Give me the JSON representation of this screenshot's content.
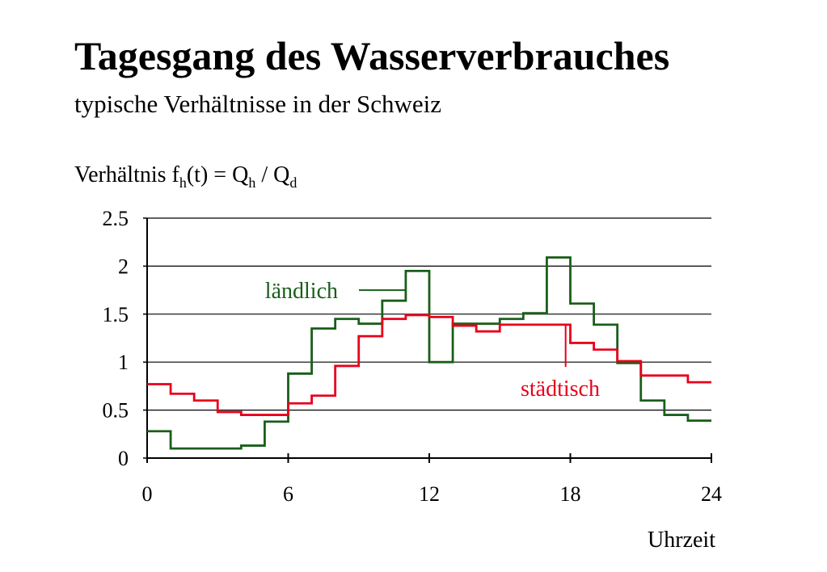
{
  "title": "Tagesgang des Wasserverbrauches",
  "subtitle": "typische Verhältnisse in der Schweiz",
  "colors": {
    "laendlich": "#1a5e1a",
    "staedtisch": "#e8001a",
    "grid": "#000000"
  },
  "chart_data": {
    "type": "line",
    "step": true,
    "title": "",
    "ylabel": {
      "prefix": "Verhältnis f",
      "f_sub": "h",
      "middle": "(t) = Q",
      "q1_sub": "h",
      "sep": " / Q",
      "q2_sub": "d"
    },
    "xlabel": "Uhrzeit",
    "xlim": [
      0,
      24
    ],
    "ylim": [
      0,
      2.5
    ],
    "xticks": [
      "0",
      "6",
      "12",
      "18",
      "24"
    ],
    "yticks": [
      "0",
      "0.5",
      "1",
      "1.5",
      "2",
      "2.5"
    ],
    "grid": "horizontal",
    "x": [
      0,
      1,
      2,
      3,
      4,
      5,
      6,
      7,
      8,
      9,
      10,
      11,
      12,
      13,
      14,
      15,
      16,
      17,
      18,
      19,
      20,
      21,
      22,
      23
    ],
    "series": [
      {
        "name": "ländlich",
        "color": "laendlich",
        "values": [
          0.28,
          0.1,
          0.1,
          0.1,
          0.13,
          0.38,
          0.88,
          1.35,
          1.45,
          1.4,
          1.64,
          1.95,
          1.0,
          1.4,
          1.4,
          1.45,
          1.51,
          2.09,
          1.61,
          1.39,
          0.99,
          0.6,
          0.45,
          0.39
        ]
      },
      {
        "name": "städtisch",
        "color": "staedtisch",
        "values": [
          0.77,
          0.67,
          0.6,
          0.48,
          0.45,
          0.45,
          0.57,
          0.65,
          0.96,
          1.27,
          1.45,
          1.49,
          1.47,
          1.38,
          1.32,
          1.39,
          1.39,
          1.39,
          1.2,
          1.13,
          1.01,
          0.86,
          0.86,
          0.79
        ]
      }
    ]
  }
}
